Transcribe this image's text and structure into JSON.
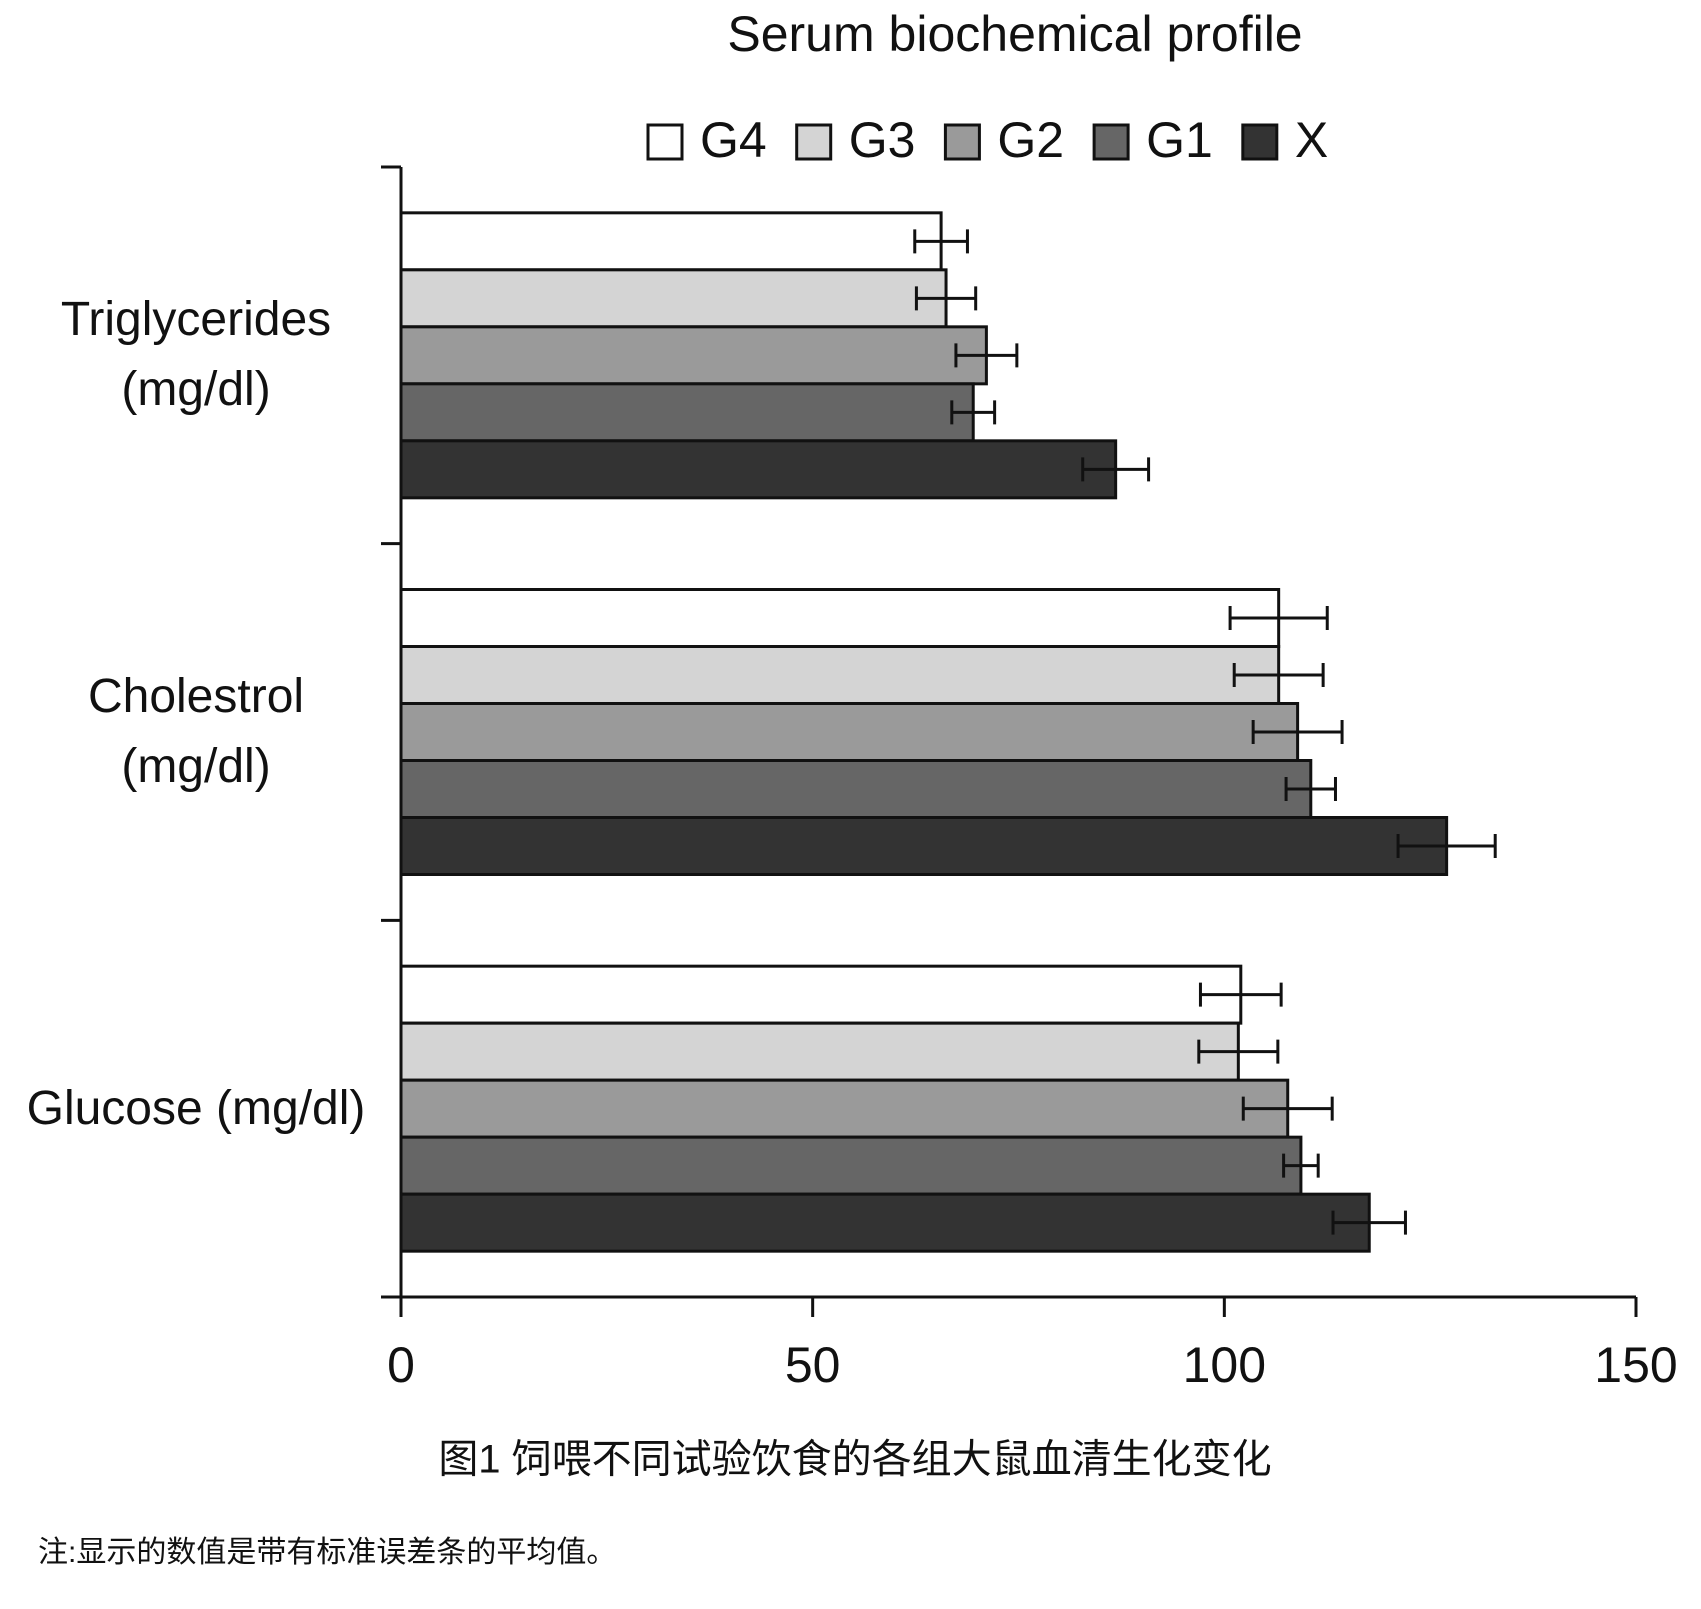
{
  "chart_data": {
    "type": "bar",
    "orientation": "horizontal",
    "title": "Serum biochemical profile",
    "categories": [
      "Triglycerides (mg/dl)",
      "Cholestrol (mg/dl)",
      "Glucose (mg/dl)"
    ],
    "series": [
      {
        "name": "G4",
        "color": "#ffffff",
        "values": [
          65.6,
          106.6,
          102.0
        ],
        "errors": [
          3.2,
          5.9,
          4.9
        ]
      },
      {
        "name": "G3",
        "color": "#d4d4d4",
        "values": [
          66.2,
          106.6,
          101.7
        ],
        "errors": [
          3.6,
          5.4,
          4.8
        ]
      },
      {
        "name": "G2",
        "color": "#9a9a9a",
        "values": [
          71.1,
          108.9,
          107.7
        ],
        "errors": [
          3.7,
          5.4,
          5.4
        ]
      },
      {
        "name": "G1",
        "color": "#666666",
        "values": [
          69.5,
          110.5,
          109.3
        ],
        "errors": [
          2.6,
          3.0,
          2.1
        ]
      },
      {
        "name": "X",
        "color": "#333333",
        "values": [
          86.8,
          127.0,
          117.6
        ],
        "errors": [
          4.0,
          5.9,
          4.4
        ]
      }
    ],
    "xlim": [
      0,
      150
    ],
    "xticks": [
      0,
      50,
      100,
      150
    ],
    "grid": false,
    "caption": "图1 饲喂不同试验饮食的各组大鼠血清生化变化",
    "note": "注:显示的数值是带有标准误差条的平均值。"
  }
}
